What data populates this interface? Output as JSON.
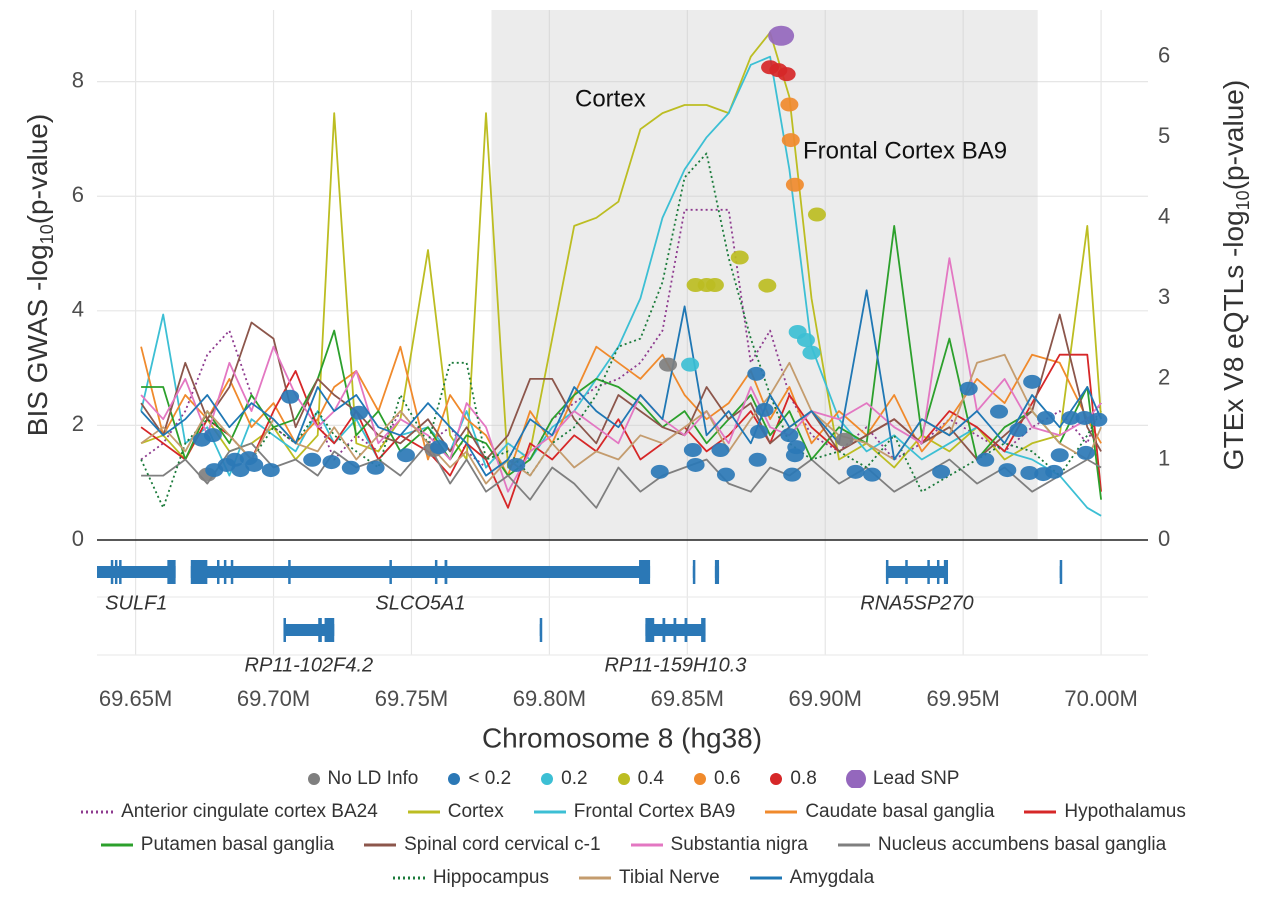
{
  "chart_data": {
    "type": "scatter",
    "xlabel": "Chromosome 8 (hg38)",
    "ylabel": {
      "pre": "BIS GWAS -log",
      "sub": "10",
      "post": "(p-value)"
    },
    "y2label": {
      "pre": "GTEx V8 eQTLs -log",
      "sub": "10",
      "post": "(p-value)"
    },
    "xlim": [
      69636000,
      70017000
    ],
    "xticks": [
      {
        "value": 69650000,
        "label": "69.65M"
      },
      {
        "value": 69700000,
        "label": "69.70M"
      },
      {
        "value": 69750000,
        "label": "69.75M"
      },
      {
        "value": 69800000,
        "label": "69.80M"
      },
      {
        "value": 69850000,
        "label": "69.85M"
      },
      {
        "value": 69900000,
        "label": "69.90M"
      },
      {
        "value": 69950000,
        "label": "69.95M"
      },
      {
        "value": 70000000,
        "label": "70.00M"
      }
    ],
    "ylim": [
      0,
      9.25
    ],
    "yticks": [
      0,
      2,
      4,
      6,
      8
    ],
    "y2lim": [
      0,
      6.58
    ],
    "y2ticks": [
      0,
      1,
      2,
      3,
      4,
      5,
      6
    ],
    "grid": true,
    "highlight": [
      69779000,
      69977000
    ],
    "annotations": [
      "Cortex",
      "Frontal Cortex BA9"
    ],
    "series": [
      {
        "name": "No LD Info",
        "color": "#7f7f7f",
        "x": [
          69843000,
          69676000,
          69758000,
          69907000
        ],
        "values": [
          3.06,
          1.14,
          1.57,
          1.75
        ]
      },
      {
        "name": "< 0.2",
        "color": "#2b78b6",
        "x": [
          69674000,
          69678000,
          69678500,
          69683000,
          69686000,
          69688000,
          69691000,
          69693000,
          69699000,
          69706000,
          69714000,
          69721000,
          69728000,
          69731000,
          69737000,
          69748000,
          69760000,
          69788000,
          69840000,
          69852000,
          69853000,
          69862000,
          69864000,
          69875000,
          69875500,
          69878000,
          69876000,
          69887000,
          69889000,
          69888000,
          69889500,
          69911000,
          69917000,
          69942000,
          69952000,
          69958000,
          69963000,
          69966000,
          69970000,
          69974000,
          69979000,
          69983000,
          69975000,
          69980000,
          69985000,
          69989000,
          69994000,
          69999000,
          69994500
        ],
        "values": [
          1.75,
          1.83,
          1.22,
          1.31,
          1.4,
          1.22,
          1.43,
          1.31,
          1.22,
          2.5,
          1.4,
          1.36,
          1.26,
          2.22,
          1.26,
          1.48,
          1.62,
          1.31,
          1.19,
          1.57,
          1.31,
          1.57,
          1.14,
          2.9,
          1.4,
          2.27,
          1.89,
          1.83,
          1.48,
          1.14,
          1.62,
          1.19,
          1.14,
          1.19,
          2.64,
          1.4,
          2.24,
          1.22,
          1.92,
          1.17,
          1.15,
          1.19,
          2.76,
          2.13,
          1.48,
          2.13,
          2.13,
          2.1,
          1.52
        ]
      },
      {
        "name": "0.2",
        "color": "#3cbfd4",
        "x": [
          69890000,
          69893000,
          69895000,
          69851000
        ],
        "values": [
          3.63,
          3.49,
          3.27,
          3.06
        ]
      },
      {
        "name": "0.4",
        "color": "#bcbd22",
        "x": [
          69897000,
          69869000,
          69853000,
          69857000,
          69860000,
          69879000
        ],
        "values": [
          5.68,
          4.93,
          4.45,
          4.45,
          4.45,
          4.44
        ]
      },
      {
        "name": "0.6",
        "color": "#f08a2c",
        "x": [
          69887000,
          69887500,
          69889000
        ],
        "values": [
          7.6,
          6.98,
          6.2
        ]
      },
      {
        "name": "0.8",
        "color": "#d62728",
        "x": [
          69880000,
          69883000,
          69886000
        ],
        "values": [
          8.25,
          8.2,
          8.13
        ]
      },
      {
        "name": "Lead SNP",
        "color": "#9467bd",
        "x": [
          69884000
        ],
        "values": [
          8.8
        ]
      }
    ],
    "line_x": [
      69652000,
      69660000,
      69668000,
      69676000,
      69684000,
      69692000,
      69700000,
      69708000,
      69716000,
      69722000,
      69730000,
      69738000,
      69746000,
      69756000,
      69764000,
      69770000,
      69777000,
      69785000,
      69793000,
      69801000,
      69809000,
      69817000,
      69825000,
      69833000,
      69841000,
      69849000,
      69857000,
      69865000,
      69873000,
      69880000,
      69887000,
      69895000,
      69905000,
      69915000,
      69925000,
      69935000,
      69945000,
      69955000,
      69965000,
      69975000,
      69985000,
      69995000,
      70000000
    ],
    "lines": [
      {
        "name": "Anterior cingulate cortex BA24",
        "color": "#8e3b8f",
        "dash": true,
        "axis": "y2",
        "values": [
          1.0,
          1.2,
          1.6,
          2.3,
          2.6,
          1.8,
          1.4,
          1.2,
          1.5,
          1.0,
          1.3,
          1.1,
          1.6,
          1.2,
          1.4,
          1.1,
          0.9,
          1.2,
          1.0,
          1.5,
          1.7,
          1.9,
          2.0,
          2.2,
          2.6,
          4.1,
          4.1,
          4.1,
          2.2,
          2.6,
          1.8,
          1.3,
          1.1,
          1.4,
          1.0,
          1.2,
          1.5,
          1.3,
          1.1,
          1.4,
          1.6,
          1.2,
          1.7
        ]
      },
      {
        "name": "Cortex",
        "color": "#bcbd22",
        "dash": false,
        "axis": "y2",
        "values": [
          1.2,
          1.3,
          1.0,
          1.5,
          1.1,
          1.2,
          1.4,
          1.0,
          1.3,
          5.3,
          1.2,
          1.1,
          1.5,
          3.6,
          1.3,
          1.0,
          5.3,
          0.9,
          1.1,
          2.5,
          3.9,
          4.0,
          4.2,
          5.1,
          5.3,
          5.4,
          5.4,
          5.3,
          6.0,
          6.3,
          5.5,
          3.0,
          1.0,
          1.2,
          0.9,
          1.3,
          1.1,
          1.4,
          1.0,
          1.2,
          1.3,
          3.9,
          1.5
        ]
      },
      {
        "name": "Frontal Cortex BA9",
        "color": "#3cbfd4",
        "dash": false,
        "axis": "y2",
        "values": [
          1.6,
          2.8,
          1.2,
          1.4,
          0.8,
          1.5,
          1.3,
          1.1,
          1.6,
          1.2,
          1.5,
          1.0,
          1.3,
          1.4,
          1.1,
          1.6,
          0.9,
          1.2,
          1.0,
          1.4,
          1.6,
          2.0,
          2.4,
          3.0,
          4.0,
          4.6,
          5.0,
          5.3,
          5.9,
          6.0,
          4.6,
          2.4,
          1.5,
          1.1,
          1.3,
          1.0,
          1.2,
          1.4,
          1.1,
          1.0,
          0.8,
          0.4,
          0.3
        ]
      },
      {
        "name": "Caudate basal ganglia",
        "color": "#f08a2c",
        "dash": false,
        "axis": "y2",
        "values": [
          2.4,
          1.3,
          1.8,
          1.5,
          2.0,
          1.4,
          1.7,
          1.2,
          1.5,
          1.9,
          2.1,
          1.6,
          2.4,
          1.0,
          1.8,
          1.5,
          1.3,
          0.8,
          1.6,
          1.2,
          1.8,
          2.4,
          2.2,
          2.0,
          2.3,
          1.8,
          1.5,
          1.7,
          2.1,
          1.5,
          1.9,
          1.2,
          1.6,
          1.3,
          1.8,
          1.1,
          1.5,
          2.0,
          1.7,
          2.3,
          2.2,
          1.5,
          1.2
        ]
      },
      {
        "name": "Hypothalamus",
        "color": "#d62728",
        "dash": false,
        "axis": "y2",
        "values": [
          1.4,
          1.2,
          1.0,
          1.5,
          1.3,
          1.0,
          1.6,
          2.1,
          1.4,
          1.2,
          1.6,
          1.0,
          1.3,
          1.1,
          0.8,
          1.2,
          1.0,
          0.4,
          1.2,
          1.0,
          1.3,
          1.1,
          1.5,
          1.0,
          1.2,
          1.4,
          1.1,
          1.3,
          1.6,
          1.2,
          1.8,
          1.4,
          1.1,
          1.3,
          1.5,
          1.2,
          1.6,
          1.4,
          1.1,
          1.7,
          2.3,
          2.3,
          0.6
        ]
      },
      {
        "name": "Putamen basal ganglia",
        "color": "#2ca02c",
        "dash": false,
        "axis": "y2",
        "values": [
          1.9,
          1.9,
          1.0,
          1.6,
          1.2,
          1.8,
          1.4,
          1.5,
          2.0,
          2.6,
          1.3,
          1.6,
          1.1,
          1.4,
          1.0,
          1.3,
          1.2,
          0.8,
          1.0,
          1.5,
          1.8,
          2.0,
          1.9,
          1.7,
          1.4,
          1.6,
          1.2,
          1.5,
          1.8,
          1.3,
          1.6,
          1.0,
          1.4,
          1.2,
          3.9,
          1.3,
          2.5,
          1.0,
          1.4,
          1.6,
          1.2,
          1.9,
          0.5
        ]
      },
      {
        "name": "Spinal cord cervical c-1",
        "color": "#8c564b",
        "dash": false,
        "axis": "y2",
        "values": [
          1.7,
          1.3,
          2.2,
          1.5,
          1.9,
          2.7,
          2.5,
          1.4,
          2.0,
          1.8,
          1.6,
          1.3,
          1.2,
          1.5,
          1.1,
          1.4,
          1.0,
          1.3,
          2.0,
          2.0,
          1.5,
          1.2,
          1.8,
          1.6,
          1.4,
          1.3,
          1.9,
          1.5,
          1.7,
          1.2,
          1.4,
          1.6,
          1.1,
          1.3,
          1.5,
          1.2,
          1.4,
          1.0,
          1.3,
          1.6,
          2.8,
          1.4,
          1.1
        ]
      },
      {
        "name": "Substantia nigra",
        "color": "#e377c2",
        "dash": false,
        "axis": "y2",
        "values": [
          1.8,
          1.5,
          2.0,
          1.3,
          2.2,
          1.6,
          2.4,
          1.8,
          1.4,
          1.6,
          2.1,
          1.2,
          1.5,
          1.3,
          1.0,
          1.7,
          1.4,
          0.6,
          1.1,
          1.3,
          1.6,
          1.4,
          1.2,
          1.8,
          1.5,
          1.3,
          1.6,
          1.2,
          1.9,
          1.4,
          1.3,
          1.6,
          1.5,
          1.7,
          1.4,
          1.2,
          3.5,
          1.6,
          2.0,
          1.4,
          1.3,
          1.5,
          1.7
        ]
      },
      {
        "name": "Nucleus accumbens basal ganglia",
        "color": "#7f7f7f",
        "dash": false,
        "axis": "y2",
        "values": [
          0.8,
          0.8,
          1.0,
          0.7,
          1.1,
          1.2,
          0.9,
          1.0,
          0.8,
          1.1,
          0.9,
          1.0,
          0.8,
          1.2,
          0.7,
          1.0,
          0.6,
          0.8,
          0.5,
          0.9,
          0.7,
          0.4,
          0.9,
          0.6,
          0.8,
          0.9,
          1.0,
          0.7,
          0.6,
          0.9,
          0.8,
          1.0,
          0.7,
          0.9,
          0.6,
          0.8,
          1.0,
          0.7,
          0.9,
          0.6,
          0.8,
          1.0,
          0.9
        ]
      },
      {
        "name": "Hippocampus",
        "color": "#1a7a3a",
        "dash": true,
        "axis": "y2",
        "values": [
          1.0,
          0.4,
          1.2,
          1.5,
          1.3,
          1.0,
          1.4,
          1.2,
          1.6,
          1.3,
          1.1,
          0.9,
          1.8,
          1.2,
          2.2,
          2.2,
          1.0,
          1.1,
          0.8,
          1.2,
          1.4,
          1.8,
          2.4,
          2.5,
          3.2,
          4.5,
          4.8,
          3.5,
          2.5,
          1.8,
          1.2,
          1.0,
          1.1,
          0.9,
          1.3,
          0.6,
          0.8,
          1.0,
          1.2,
          1.1,
          0.8,
          1.3,
          1.6
        ]
      },
      {
        "name": "Tibial Nerve",
        "color": "#c49c6e",
        "dash": false,
        "axis": "y2",
        "values": [
          1.2,
          1.4,
          1.1,
          1.6,
          1.3,
          1.0,
          1.5,
          1.2,
          1.1,
          1.4,
          1.0,
          1.3,
          1.6,
          1.2,
          0.9,
          1.1,
          0.7,
          1.0,
          0.8,
          1.2,
          0.9,
          1.1,
          1.0,
          1.3,
          1.2,
          1.4,
          1.6,
          1.1,
          1.5,
          1.8,
          2.2,
          1.6,
          1.3,
          1.2,
          1.0,
          1.5,
          1.3,
          2.2,
          2.3,
          1.6,
          1.2,
          1.0,
          1.4
        ]
      },
      {
        "name": "Amygdala",
        "color": "#1f77b4",
        "dash": false,
        "axis": "y2",
        "values": [
          1.6,
          1.3,
          1.5,
          1.8,
          1.4,
          1.7,
          1.5,
          1.2,
          1.9,
          1.6,
          1.8,
          1.4,
          1.3,
          1.7,
          1.4,
          1.2,
          0.8,
          1.0,
          1.5,
          1.3,
          1.9,
          1.6,
          1.4,
          1.8,
          1.5,
          2.9,
          1.3,
          1.6,
          1.2,
          1.8,
          1.4,
          1.6,
          1.2,
          3.1,
          1.0,
          1.5,
          1.3,
          1.6,
          1.2,
          1.8,
          1.4,
          1.9,
          1.5
        ]
      }
    ],
    "gene_color": "#2b78b6",
    "genes": [
      {
        "label": "SULF1",
        "row": 0,
        "start": 69636000,
        "end": 69664500,
        "exons": [
          [
            69641000,
            69641600
          ],
          [
            69642500,
            69643100
          ],
          [
            69644000,
            69644600
          ],
          [
            69661500,
            69664500
          ]
        ]
      },
      {
        "label": "SLCO5A1",
        "row": 0,
        "start": 69670000,
        "end": 69836500,
        "exons": [
          [
            69670000,
            69676000
          ],
          [
            69679500,
            69680300
          ],
          [
            69682000,
            69682800
          ],
          [
            69684500,
            69685300
          ],
          [
            69705300,
            69706000
          ],
          [
            69742000,
            69742800
          ],
          [
            69758500,
            69759300
          ],
          [
            69762000,
            69763000
          ],
          [
            69832500,
            69836500
          ]
        ]
      },
      {
        "label": null,
        "row": 0,
        "start": 69852000,
        "end": 69852600,
        "exons": [
          [
            69852000,
            69852600
          ]
        ]
      },
      {
        "label": null,
        "row": 0,
        "start": 69860000,
        "end": 69861500,
        "exons": [
          [
            69860000,
            69861500
          ]
        ]
      },
      {
        "label": "RNA5SP270",
        "row": 0,
        "start": 69922000,
        "end": 69944500,
        "exons": [
          [
            69922000,
            69922600
          ],
          [
            69929000,
            69929600
          ],
          [
            69937000,
            69937600
          ],
          [
            69940500,
            69941100
          ],
          [
            69943000,
            69944500
          ]
        ]
      },
      {
        "label": null,
        "row": 0,
        "start": 69985000,
        "end": 69985600,
        "exons": [
          [
            69985000,
            69985600
          ]
        ]
      },
      {
        "label": "RP11-102F4.2",
        "row": 1,
        "start": 69703600,
        "end": 69722000,
        "exons": [
          [
            69703600,
            69704300
          ],
          [
            69716200,
            69717500
          ],
          [
            69718500,
            69722000
          ]
        ]
      },
      {
        "label": null,
        "row": 1,
        "start": 69796500,
        "end": 69797200,
        "exons": [
          [
            69796500,
            69797200
          ]
        ]
      },
      {
        "label": "RP11-159H10.3",
        "row": 1,
        "start": 69834800,
        "end": 69856600,
        "exons": [
          [
            69834800,
            69838000
          ],
          [
            69841000,
            69842000
          ],
          [
            69845000,
            69846000
          ],
          [
            69849000,
            69850000
          ],
          [
            69855000,
            69856600
          ]
        ]
      }
    ]
  }
}
